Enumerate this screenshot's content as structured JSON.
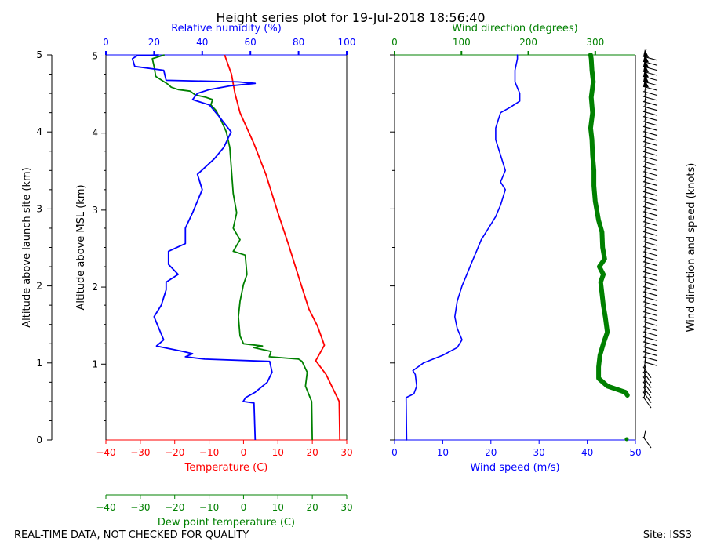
{
  "title": "Height series plot for 19-Jul-2018 18:56:40",
  "footer_left": "REAL-TIME DATA, NOT CHECKED FOR QUALITY",
  "footer_right": "Site: ISS3",
  "colors": {
    "temperature": "#ff0000",
    "dewpoint": "#008000",
    "humidity": "#0000ff",
    "wind_speed": "#0000ff",
    "wind_direction": "#008000",
    "barbs": "#000000"
  },
  "chart_data": [
    {
      "type": "line",
      "panel": "thermo",
      "left_axis": {
        "label": "Altitude above launch site (km)",
        "ticks": [
          0,
          1,
          2,
          3,
          4,
          5
        ],
        "ylim": [
          0,
          5
        ]
      },
      "inner_axis": {
        "label": "Altitude above MSL (km)",
        "ticks": [
          1,
          2,
          3,
          4,
          5
        ],
        "tick_labels": [
          "1",
          "2",
          "3",
          "4",
          "5"
        ]
      },
      "x_bottom": {
        "label": "Temperature (C)",
        "ticks": [
          -40,
          -30,
          -20,
          -10,
          0,
          10,
          20,
          30
        ],
        "xlim": [
          -40,
          30
        ]
      },
      "x_top": {
        "label": "Relative humidity (%)",
        "ticks": [
          0,
          20,
          40,
          60,
          80,
          100
        ],
        "xlim": [
          0,
          100
        ]
      },
      "x_offset": {
        "label": "Dew point temperature (C)",
        "ticks": [
          -40,
          -30,
          -20,
          -10,
          0,
          10,
          20,
          30
        ],
        "xlim": [
          -40,
          30
        ]
      },
      "series": [
        {
          "name": "Temperature",
          "axis": "bottom",
          "points": [
            [
              28.0,
              0.0
            ],
            [
              27.8,
              0.5
            ],
            [
              24,
              0.85
            ],
            [
              21,
              1.03
            ],
            [
              23.5,
              1.23
            ],
            [
              21.5,
              1.48
            ],
            [
              19,
              1.7
            ],
            [
              16.5,
              2.05
            ],
            [
              13,
              2.55
            ],
            [
              10,
              2.95
            ],
            [
              6.5,
              3.45
            ],
            [
              3,
              3.85
            ],
            [
              -1,
              4.25
            ],
            [
              -2.5,
              4.5
            ],
            [
              -3.5,
              4.75
            ],
            [
              -5.5,
              5.0
            ]
          ]
        },
        {
          "name": "Dew point temperature",
          "axis": "bottom",
          "points": [
            [
              20.0,
              0.0
            ],
            [
              19.8,
              0.5
            ],
            [
              18.0,
              0.7
            ],
            [
              18.5,
              0.88
            ],
            [
              17,
              1.02
            ],
            [
              16,
              1.05
            ],
            [
              7.5,
              1.08
            ],
            [
              8,
              1.15
            ],
            [
              3,
              1.2
            ],
            [
              5.5,
              1.22
            ],
            [
              0,
              1.25
            ],
            [
              -1,
              1.35
            ],
            [
              -1.5,
              1.6
            ],
            [
              -1,
              1.8
            ],
            [
              0,
              2.02
            ],
            [
              1,
              2.15
            ],
            [
              0.5,
              2.4
            ],
            [
              -3,
              2.45
            ],
            [
              -1,
              2.6
            ],
            [
              -3,
              2.75
            ],
            [
              -2,
              2.95
            ],
            [
              -3,
              3.2
            ],
            [
              -3.5,
              3.5
            ],
            [
              -4,
              3.8
            ],
            [
              -5,
              4.0
            ],
            [
              -6.5,
              4.15
            ],
            [
              -8,
              4.28
            ],
            [
              -9.5,
              4.35
            ],
            [
              -9,
              4.42
            ],
            [
              -11,
              4.45
            ],
            [
              -14,
              4.48
            ],
            [
              -15.5,
              4.53
            ],
            [
              -19,
              4.55
            ],
            [
              -21,
              4.58
            ],
            [
              -22,
              4.62
            ],
            [
              -25.5,
              4.72
            ],
            [
              -26,
              4.85
            ],
            [
              -26.5,
              4.95
            ],
            [
              -23,
              5.0
            ]
          ]
        },
        {
          "name": "Relative humidity",
          "axis": "top",
          "points": [
            [
              62,
              0.0
            ],
            [
              61.5,
              0.48
            ],
            [
              57,
              0.5
            ],
            [
              58,
              0.55
            ],
            [
              62,
              0.62
            ],
            [
              67,
              0.75
            ],
            [
              69,
              0.88
            ],
            [
              68,
              1.02
            ],
            [
              41,
              1.05
            ],
            [
              33,
              1.08
            ],
            [
              36,
              1.12
            ],
            [
              32,
              1.15
            ],
            [
              21,
              1.22
            ],
            [
              24,
              1.3
            ],
            [
              22,
              1.45
            ],
            [
              20,
              1.6
            ],
            [
              23,
              1.75
            ],
            [
              25,
              1.95
            ],
            [
              25,
              2.05
            ],
            [
              30,
              2.15
            ],
            [
              26,
              2.28
            ],
            [
              26,
              2.45
            ],
            [
              33,
              2.55
            ],
            [
              33,
              2.75
            ],
            [
              36,
              2.95
            ],
            [
              40,
              3.25
            ],
            [
              38,
              3.45
            ],
            [
              45,
              3.65
            ],
            [
              49,
              3.8
            ],
            [
              52,
              4.0
            ],
            [
              47,
              4.2
            ],
            [
              43,
              4.35
            ],
            [
              36,
              4.42
            ],
            [
              38,
              4.5
            ],
            [
              43,
              4.55
            ],
            [
              52,
              4.6
            ],
            [
              62,
              4.63
            ],
            [
              55,
              4.65
            ],
            [
              25,
              4.67
            ],
            [
              24,
              4.8
            ],
            [
              12,
              4.85
            ],
            [
              11,
              4.95
            ],
            [
              13,
              4.99
            ],
            [
              22,
              5.0
            ]
          ]
        }
      ]
    },
    {
      "type": "line",
      "panel": "wind",
      "x_bottom": {
        "label": "Wind speed (m/s)",
        "ticks": [
          0,
          10,
          20,
          30,
          40,
          50
        ],
        "xlim": [
          0,
          50
        ]
      },
      "x_top": {
        "label": "Wind direction (degrees)",
        "ticks": [
          0,
          100,
          200,
          300
        ],
        "xlim": [
          0,
          360
        ]
      },
      "right_label": "Wind direction and speed (knots)",
      "series": [
        {
          "name": "Wind speed",
          "axis": "bottom",
          "points": [
            [
              2.5,
              0.0
            ],
            [
              2.4,
              0.55
            ],
            [
              4,
              0.6
            ],
            [
              4.6,
              0.7
            ],
            [
              4.3,
              0.85
            ],
            [
              3.8,
              0.9
            ],
            [
              6,
              1.0
            ],
            [
              10,
              1.1
            ],
            [
              13,
              1.2
            ],
            [
              14,
              1.3
            ],
            [
              13,
              1.45
            ],
            [
              12.5,
              1.6
            ],
            [
              13,
              1.8
            ],
            [
              14,
              2.0
            ],
            [
              15,
              2.15
            ],
            [
              16,
              2.3
            ],
            [
              17,
              2.45
            ],
            [
              18,
              2.6
            ],
            [
              20,
              2.8
            ],
            [
              21,
              2.9
            ],
            [
              22,
              3.05
            ],
            [
              23,
              3.25
            ],
            [
              22,
              3.35
            ],
            [
              23,
              3.5
            ],
            [
              22,
              3.7
            ],
            [
              21,
              3.9
            ],
            [
              21,
              4.05
            ],
            [
              22,
              4.25
            ],
            [
              24,
              4.32
            ],
            [
              26,
              4.4
            ],
            [
              26,
              4.5
            ],
            [
              25,
              4.65
            ],
            [
              25,
              4.8
            ],
            [
              25.5,
              4.95
            ],
            [
              25.5,
              5.0
            ]
          ]
        },
        {
          "name": "Wind direction",
          "axis": "top",
          "points": [
            [
              348,
              0.58
            ],
            [
              345,
              0.62
            ],
            [
              335,
              0.65
            ],
            [
              318,
              0.7
            ],
            [
              305,
              0.8
            ],
            [
              305,
              0.95
            ],
            [
              307,
              1.1
            ],
            [
              312,
              1.25
            ],
            [
              318,
              1.4
            ],
            [
              315,
              1.6
            ],
            [
              312,
              1.75
            ],
            [
              310,
              1.9
            ],
            [
              308,
              2.05
            ],
            [
              312,
              2.15
            ],
            [
              306,
              2.25
            ],
            [
              314,
              2.35
            ],
            [
              311,
              2.5
            ],
            [
              310,
              2.7
            ],
            [
              305,
              2.85
            ],
            [
              302,
              3.0
            ],
            [
              300,
              3.1
            ],
            [
              298,
              3.3
            ],
            [
              298,
              3.5
            ],
            [
              296,
              3.7
            ],
            [
              295,
              3.9
            ],
            [
              293,
              4.05
            ],
            [
              296,
              4.25
            ],
            [
              294,
              4.45
            ],
            [
              297,
              4.65
            ],
            [
              295,
              4.8
            ],
            [
              294,
              4.95
            ],
            [
              293,
              5.0
            ]
          ]
        }
      ]
    }
  ]
}
